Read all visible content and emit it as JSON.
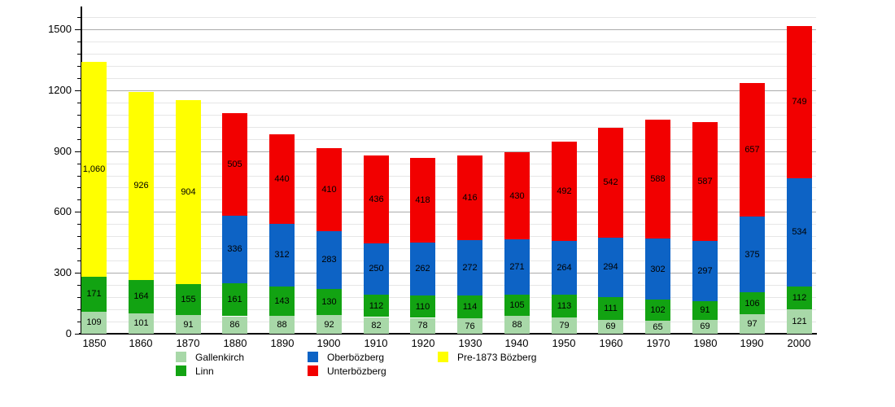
{
  "chart_data": {
    "type": "bar",
    "subtype": "stacked-vertical",
    "title": "",
    "xlabel": "",
    "ylabel": "",
    "categories": [
      "1850",
      "1860",
      "1870",
      "1880",
      "1890",
      "1900",
      "1910",
      "1920",
      "1930",
      "1940",
      "1950",
      "1960",
      "1970",
      "1980",
      "1990",
      "2000"
    ],
    "series": [
      {
        "name": "Gallenkirch",
        "color": "#a8d8a8",
        "values": [
          109,
          101,
          91,
          86,
          88,
          92,
          82,
          78,
          76,
          88,
          79,
          69,
          65,
          69,
          97,
          121
        ]
      },
      {
        "name": "Linn",
        "color": "#12a312",
        "values": [
          171,
          164,
          155,
          161,
          143,
          130,
          112,
          110,
          114,
          105,
          113,
          111,
          102,
          91,
          106,
          112
        ]
      },
      {
        "name": "Oberbözberg",
        "color": "#0d63c5",
        "values": [
          null,
          null,
          null,
          336,
          312,
          283,
          250,
          262,
          272,
          271,
          264,
          294,
          302,
          297,
          375,
          534
        ]
      },
      {
        "name": "Unterbözberg",
        "color": "#f20000",
        "values": [
          null,
          null,
          null,
          505,
          440,
          410,
          436,
          418,
          416,
          430,
          492,
          542,
          588,
          587,
          657,
          749
        ]
      },
      {
        "name": "Pre-1873 Bözberg",
        "color": "#ffff00",
        "values": [
          1060,
          926,
          904,
          null,
          null,
          null,
          null,
          null,
          null,
          null,
          null,
          null,
          null,
          null,
          null,
          null
        ]
      }
    ],
    "ylim": [
      0,
      1612
    ],
    "y_major_ticks": [
      0,
      300,
      600,
      900,
      1200,
      1500
    ],
    "y_minor_step": 60,
    "grid": "horizontal",
    "legend_position": "bottom",
    "bar_value_labels": true
  },
  "legend": {
    "items": [
      {
        "label": "Gallenkirch",
        "color": "#a8d8a8",
        "col": 0,
        "row": 0
      },
      {
        "label": "Linn",
        "color": "#12a312",
        "col": 0,
        "row": 1
      },
      {
        "label": "Oberbözberg",
        "color": "#0d63c5",
        "col": 1,
        "row": 0
      },
      {
        "label": "Unterbözberg",
        "color": "#f20000",
        "col": 1,
        "row": 1
      },
      {
        "label": "Pre-1873 Bözberg",
        "color": "#ffff00",
        "col": 2,
        "row": 0
      }
    ]
  }
}
